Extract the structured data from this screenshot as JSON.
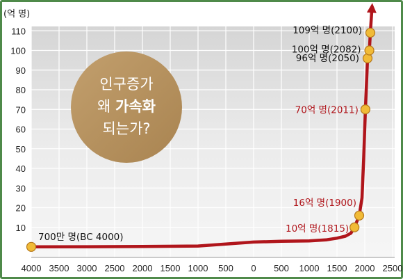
{
  "chart_data": {
    "type": "line",
    "ylabel": "(억 명)",
    "xlim": [
      -4000,
      2500
    ],
    "ylim": [
      0,
      110
    ],
    "x_ticks": [
      -4000,
      -3500,
      -3000,
      -2500,
      -2000,
      -1500,
      -1000,
      -500,
      0,
      500,
      1000,
      1500,
      2000,
      2500
    ],
    "x_tick_labels": [
      "4000",
      "3500",
      "3000",
      "2500",
      "2000",
      "1500",
      "1000",
      "500",
      "0",
      "500",
      "1000",
      "1500",
      "2000",
      "2500"
    ],
    "y_ticks": [
      10,
      20,
      30,
      40,
      50,
      60,
      70,
      80,
      90,
      100,
      110
    ],
    "y_tick_labels": [
      "10",
      "20",
      "30",
      "40",
      "50",
      "60",
      "70",
      "80",
      "90",
      "100",
      "110"
    ],
    "grid": true,
    "points": [
      {
        "x": -4000,
        "y": 0.07,
        "label": "700만 명(BC 4000)",
        "color": "#111111"
      },
      {
        "x": 1815,
        "y": 10,
        "label": "10억 명(1815)",
        "color": "#b0151b"
      },
      {
        "x": 1900,
        "y": 16,
        "label": "16억 명(1900)",
        "color": "#b0151b"
      },
      {
        "x": 2011,
        "y": 70,
        "label": "70억 명(2011)",
        "color": "#b0151b"
      },
      {
        "x": 2050,
        "y": 96,
        "label": "96억 명(2050)",
        "color": "#111111"
      },
      {
        "x": 2082,
        "y": 100,
        "label": "100억 명(2082)",
        "color": "#111111"
      },
      {
        "x": 2100,
        "y": 109,
        "label": "109억 명(2100)",
        "color": "#111111"
      }
    ],
    "curve": {
      "x": [
        -4000,
        -3000,
        -2000,
        -1000,
        0,
        500,
        1000,
        1300,
        1500,
        1650,
        1750,
        1815,
        1900,
        1950,
        1980,
        2011,
        2050,
        2082,
        2100,
        2130
      ],
      "y": [
        0.07,
        0.14,
        0.27,
        0.5,
        2.5,
        2.9,
        3.1,
        3.6,
        4.5,
        5.5,
        7,
        10,
        16,
        25,
        45,
        70,
        96,
        100,
        109,
        122
      ]
    },
    "line_color": "#b0151b",
    "marker_fill": "#f1bb37",
    "annotation": {
      "lines": [
        [
          {
            "text": "인구증가",
            "bold": false
          }
        ],
        [
          {
            "text": "왜 ",
            "bold": false
          },
          {
            "text": "가속화",
            "bold": true
          }
        ],
        [
          {
            "text": "되는가?",
            "bold": false
          }
        ]
      ],
      "color": "#b7925f"
    }
  }
}
